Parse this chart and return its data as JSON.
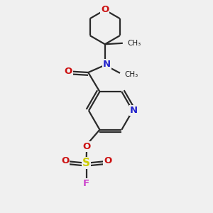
{
  "bg_color": "#f0f0f0",
  "atom_colors": {
    "C": "#1a1a1a",
    "N": "#2222cc",
    "O": "#cc1111",
    "S": "#cccc00",
    "F": "#cc44cc"
  },
  "bond_color": "#2a2a2a",
  "bond_lw": 1.6
}
